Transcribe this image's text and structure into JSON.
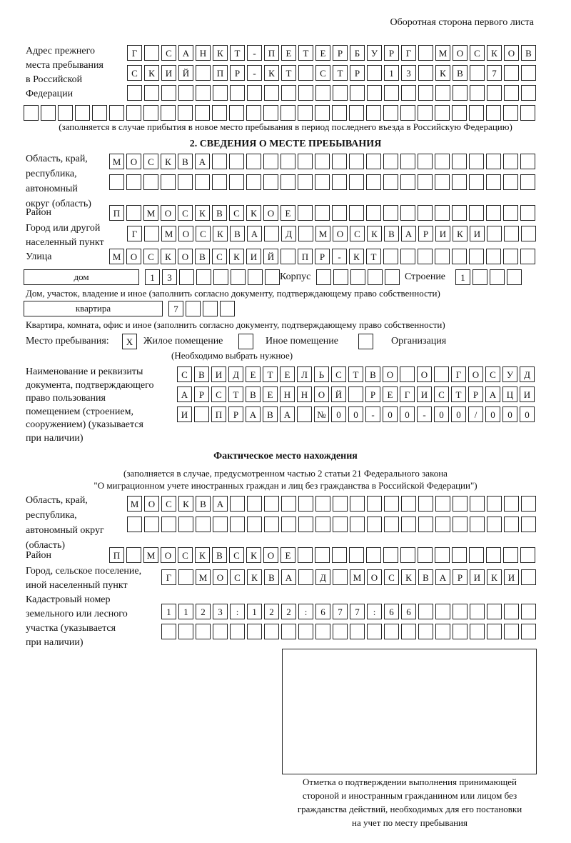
{
  "header": "Оборотная сторона первого листа",
  "prev_address": {
    "label": "Адрес прежнего\nместа пребывания\nв Российской\nФедерации",
    "rows": [
      "Г САНКТ-ПЕТЕРБУРГ МОСКОВ",
      "СКИЙ ПР-КТ СТР 13 КВ 7  ",
      "                        ",
      "                              "
    ],
    "note": "(заполняется в случае прибытия в новое место пребывания в период последнего въезда в Российскую Федерацию)"
  },
  "section2": {
    "title": "2. СВЕДЕНИЯ О МЕСТЕ ПРЕБЫВАНИЯ",
    "region_label": "Область, край,\nреспублика,\nавтономный\nокруг (область)",
    "region_rows": [
      "МОСКВА                   ",
      "                         "
    ],
    "district_label": "Район",
    "district_row": "П МОСКВСКОЕ              ",
    "city_label": "Город или другой\nнаселенный пункт",
    "city_row": "Г МОСКВА Д МОСКВАРИКИ   ",
    "street_label": "Улица",
    "street_row": "МОСКОВСКИЙ ПР-КТ         ",
    "house_type": "дом",
    "house_cells": "13      ",
    "korpus_label": "Корпус",
    "korpus_cells": "     ",
    "building_label": "Строение",
    "building_cells": "1   ",
    "house_note": "Дом, участок, владение и иное (заполнить согласно документу, подтверждающему право собственности)",
    "apt_type": "квартира",
    "apt_cells": "7   ",
    "apt_note": "Квартира, комната, офис и иное (заполнить согласно документу, подтверждающему право собственности)",
    "stay_label": "Место пребывания:",
    "options": [
      {
        "mark": "X",
        "label": "Жилое помещение",
        "checked": true
      },
      {
        "mark": "",
        "label": "Иное помещение",
        "checked": false
      },
      {
        "mark": "",
        "label": "Организация",
        "checked": false
      }
    ],
    "choose_note": "(Необходимо выбрать нужное)",
    "doc_label": "Наименование и реквизиты\nдокумента, подтверждающего\nправо пользования\nпомещением (строением,\nсооружением) (указывается\nпри наличии)",
    "doc_rows": [
      "СВИДЕТЕЛЬСТВО О ГОСУД",
      "АРСТВЕННОЙ РЕГИСТРАЦИ",
      "И ПРАВА №00-00-00/000"
    ]
  },
  "actual": {
    "title": "Фактическое место нахождения",
    "note1": "(заполняется в случае, предусмотренном частью 2 статьи 21 Федерального закона",
    "note2": "\"О миграционном учете иностранных граждан и лиц без гражданства в Российской Федерации\")",
    "region_label": "Область, край,\nреспублика,\nавтономный округ\n(область)",
    "region_rows": [
      "МОСКВА                  ",
      "                        "
    ],
    "district_label": "Район",
    "district_row": "П МОСКВСКОЕ              ",
    "city_label": "Город, сельское поселение,\nиной населенный пункт",
    "city_row": "Г МОСКВА Д МОСКВАРИКИ ",
    "cadastral_label": "Кадастровый номер\nземельного или лесного\nучастка (указывается\nпри наличии)",
    "cadastral_rows": [
      "1123:122:677:66       ",
      "                      "
    ]
  },
  "stamp_caption": "Отметка о подтверждении выполнения принимающей\nстороной и иностранным гражданином или лицом без\nгражданства действий, необходимых для его постановки\nна учет по месту пребывания"
}
